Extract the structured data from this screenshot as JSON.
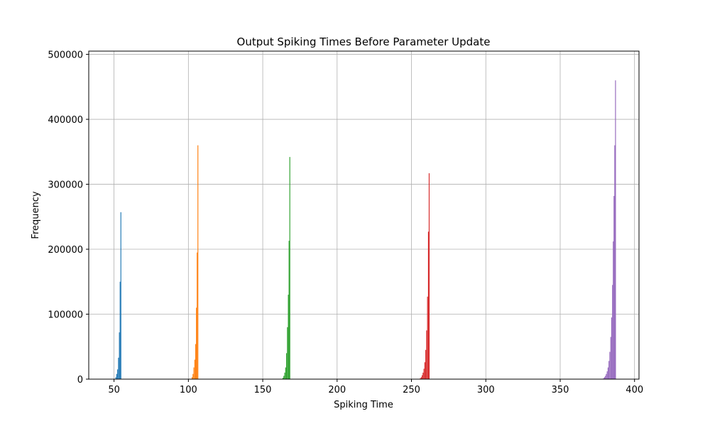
{
  "chart_data": {
    "type": "bar",
    "title": "Output Spiking Times Before Parameter Update",
    "xlabel": "Spiking Time",
    "ylabel": "Frequency",
    "xlim": [
      33,
      403
    ],
    "ylim": [
      0,
      505000
    ],
    "x_ticks": [
      50,
      100,
      150,
      200,
      250,
      300,
      350,
      400
    ],
    "y_ticks": [
      0,
      100000,
      200000,
      300000,
      400000,
      500000
    ],
    "grid": true,
    "legend": "none",
    "series": [
      {
        "color": "#1f77b4",
        "bars": [
          {
            "x": 51.2,
            "y": 3000
          },
          {
            "x": 51.8,
            "y": 8000
          },
          {
            "x": 52.4,
            "y": 15000
          },
          {
            "x": 53.0,
            "y": 33000
          },
          {
            "x": 53.6,
            "y": 72000
          },
          {
            "x": 54.1,
            "y": 150000
          },
          {
            "x": 54.6,
            "y": 257000
          }
        ]
      },
      {
        "color": "#ff7f0e",
        "bars": [
          {
            "x": 102.5,
            "y": 3000
          },
          {
            "x": 103.1,
            "y": 8000
          },
          {
            "x": 103.7,
            "y": 18000
          },
          {
            "x": 104.3,
            "y": 30000
          },
          {
            "x": 104.9,
            "y": 54000
          },
          {
            "x": 105.4,
            "y": 110000
          },
          {
            "x": 105.9,
            "y": 195000
          },
          {
            "x": 106.4,
            "y": 360000
          }
        ]
      },
      {
        "color": "#2ca02c",
        "bars": [
          {
            "x": 163.6,
            "y": 2000
          },
          {
            "x": 164.2,
            "y": 5000
          },
          {
            "x": 164.8,
            "y": 10000
          },
          {
            "x": 165.4,
            "y": 18000
          },
          {
            "x": 166.0,
            "y": 40000
          },
          {
            "x": 166.6,
            "y": 80000
          },
          {
            "x": 167.2,
            "y": 130000
          },
          {
            "x": 167.7,
            "y": 213000
          },
          {
            "x": 168.2,
            "y": 342000
          }
        ]
      },
      {
        "color": "#d62728",
        "bars": [
          {
            "x": 256.0,
            "y": 1500
          },
          {
            "x": 256.6,
            "y": 3000
          },
          {
            "x": 257.2,
            "y": 6000
          },
          {
            "x": 257.8,
            "y": 10000
          },
          {
            "x": 258.4,
            "y": 16000
          },
          {
            "x": 259.0,
            "y": 26000
          },
          {
            "x": 259.6,
            "y": 45000
          },
          {
            "x": 260.2,
            "y": 75000
          },
          {
            "x": 260.8,
            "y": 127000
          },
          {
            "x": 261.4,
            "y": 227000
          },
          {
            "x": 261.9,
            "y": 317000
          }
        ]
      },
      {
        "color": "#9467bd",
        "bars": [
          {
            "x": 379.2,
            "y": 1500
          },
          {
            "x": 379.8,
            "y": 3000
          },
          {
            "x": 380.4,
            "y": 5000
          },
          {
            "x": 381.0,
            "y": 8000
          },
          {
            "x": 381.6,
            "y": 12000
          },
          {
            "x": 382.2,
            "y": 18000
          },
          {
            "x": 382.8,
            "y": 28000
          },
          {
            "x": 383.4,
            "y": 42000
          },
          {
            "x": 384.0,
            "y": 65000
          },
          {
            "x": 384.6,
            "y": 95000
          },
          {
            "x": 385.2,
            "y": 145000
          },
          {
            "x": 385.7,
            "y": 212000
          },
          {
            "x": 386.2,
            "y": 282000
          },
          {
            "x": 386.7,
            "y": 360000
          },
          {
            "x": 387.2,
            "y": 460000
          }
        ]
      }
    ]
  }
}
